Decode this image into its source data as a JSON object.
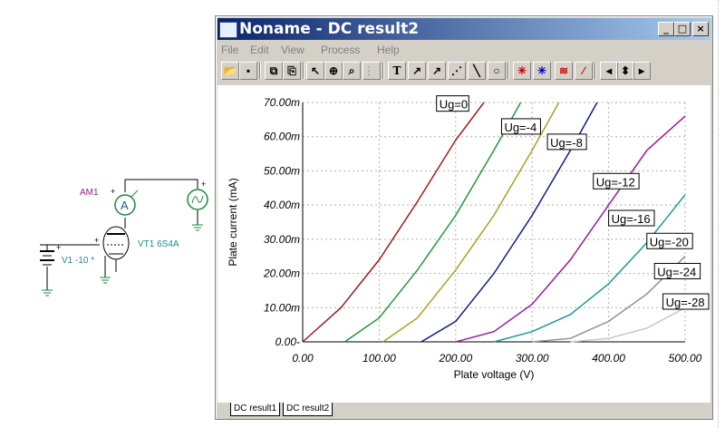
{
  "window": {
    "title": "Noname - DC result2",
    "caption_buttons": [
      "_",
      "□",
      "×"
    ]
  },
  "menu": {
    "items": [
      "File",
      "Edit",
      "View",
      "Process",
      "Help"
    ]
  },
  "toolbar": {
    "icons": [
      "open-icon",
      "save-icon",
      "copy-icon",
      "paste-icon",
      "pointer-icon",
      "zoom-in-icon",
      "zoom-100-icon",
      "grid-icon",
      "text-icon",
      "annotate-curve-icon",
      "annotate-curve2-icon",
      "annotate-multi-icon",
      "line-icon",
      "circle-icon",
      "cursor-a-icon",
      "cursor-b-icon",
      "curve-add-icon",
      "curve-remove-icon",
      "eyedropper-icon",
      "arrow-left-icon",
      "arrow-updown-icon",
      "arrow-right-icon"
    ],
    "text_glyph": "T"
  },
  "schematic": {
    "ammeter_label": "AM1",
    "ammeter_symbol": "A",
    "source_label": "V1 -10 *",
    "tube_label": "VT1 6S4A"
  },
  "tabs": [
    "DC result1",
    "DC result2"
  ],
  "chart_data": {
    "type": "line",
    "xlabel": "Plate voltage (V)",
    "ylabel": "Plate current (mA)",
    "xlim": [
      0,
      500
    ],
    "ylim": [
      0,
      0.07
    ],
    "xticks": [
      "0.00",
      "100.00",
      "200.00",
      "300.00",
      "400.00",
      "500.00"
    ],
    "yticks": [
      "0.00-",
      "10.00m",
      "20.00m",
      "30.00m",
      "40.00m",
      "50.00m",
      "60.00m",
      "70.00m"
    ],
    "grid": true,
    "series": [
      {
        "name": "Ug=0",
        "color": "#a01818",
        "x": [
          0,
          50,
          100,
          150,
          200,
          237
        ],
        "y": [
          0,
          0.01,
          0.024,
          0.041,
          0.059,
          0.07
        ]
      },
      {
        "name": "Ug=-4",
        "color": "#1f9a3a",
        "x": [
          55,
          100,
          150,
          200,
          250,
          285
        ],
        "y": [
          0,
          0.007,
          0.021,
          0.037,
          0.056,
          0.07
        ]
      },
      {
        "name": "Ug=-8",
        "color": "#a8a020",
        "x": [
          105,
          150,
          200,
          250,
          300,
          335
        ],
        "y": [
          0,
          0.007,
          0.021,
          0.037,
          0.056,
          0.07
        ]
      },
      {
        "name": "Ug=-12",
        "color": "#101890",
        "x": [
          155,
          200,
          250,
          300,
          350,
          385
        ],
        "y": [
          0,
          0.006,
          0.02,
          0.037,
          0.056,
          0.07
        ]
      },
      {
        "name": "Ug=-16",
        "color": "#9a1a9a",
        "x": [
          200,
          250,
          300,
          350,
          400,
          450,
          500
        ],
        "y": [
          0,
          0.003,
          0.011,
          0.024,
          0.04,
          0.056,
          0.066
        ]
      },
      {
        "name": "Ug=-20",
        "color": "#1a9a9a",
        "x": [
          250,
          300,
          350,
          400,
          450,
          500
        ],
        "y": [
          0,
          0.003,
          0.008,
          0.017,
          0.029,
          0.043
        ]
      },
      {
        "name": "Ug=-24",
        "color": "#909090",
        "x": [
          300,
          350,
          400,
          450,
          500
        ],
        "y": [
          0,
          0.001,
          0.006,
          0.014,
          0.025
        ]
      },
      {
        "name": "Ug=-28",
        "color": "#c8c8c8",
        "x": [
          350,
          400,
          450,
          500
        ],
        "y": [
          0,
          0.001,
          0.004,
          0.01
        ]
      }
    ],
    "labels": [
      {
        "text": "Ug=0",
        "at": [
          175,
          0.0685
        ]
      },
      {
        "text": "Ug=-4",
        "at": [
          260,
          0.0618
        ]
      },
      {
        "text": "Ug=-8",
        "at": [
          320,
          0.0573
        ]
      },
      {
        "text": "Ug=-12",
        "at": [
          380,
          0.0458
        ]
      },
      {
        "text": "Ug=-16",
        "at": [
          400,
          0.035
        ]
      },
      {
        "text": "Ug=-20",
        "at": [
          450,
          0.0283
        ]
      },
      {
        "text": "Ug=-24",
        "at": [
          460,
          0.0195
        ]
      },
      {
        "text": "Ug=-28",
        "at": [
          485,
          0.0106
        ]
      }
    ]
  }
}
